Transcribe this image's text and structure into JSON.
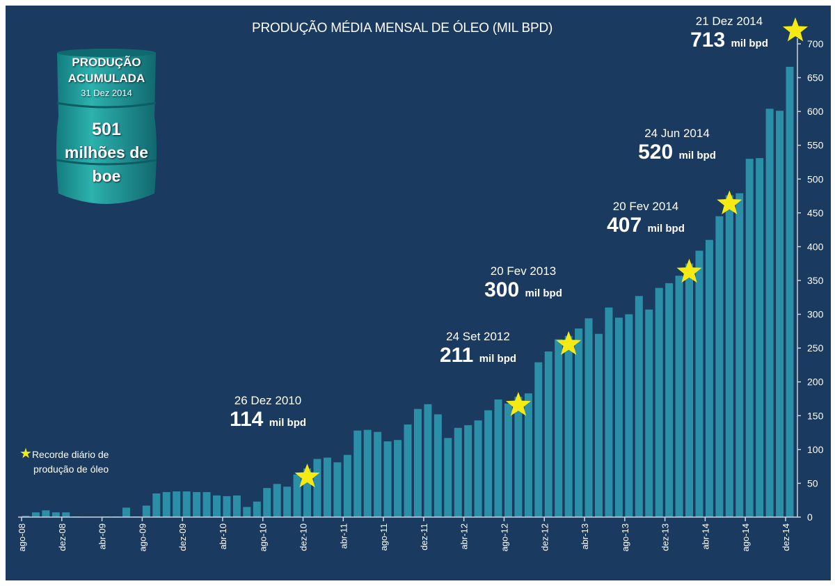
{
  "colors": {
    "background": "#1b3a5f",
    "bar": "#2b8fa8",
    "star": "#f5ea14",
    "barrel": "#1e9a9a",
    "text": "#ffffff"
  },
  "barrel": {
    "line1": "PRODUÇÃO",
    "line2": "ACUMULADA",
    "date": "31 Dez 2014",
    "value": "501",
    "unit1": "milhões de",
    "unit2": "boe"
  },
  "legend": {
    "icon": "star-icon",
    "line1": "Recorde diário de",
    "line2": "produção de óleo"
  },
  "chart_data": {
    "type": "bar",
    "title": "PRODUÇÃO MÉDIA MENSAL DE ÓLEO (MIL BPD)",
    "xlabel": "",
    "ylabel": "",
    "ylim": [
      0,
      700
    ],
    "yticks": [
      "0",
      "50",
      "100",
      "150",
      "200",
      "250",
      "300",
      "350",
      "400",
      "450",
      "500",
      "550",
      "600",
      "650",
      "700"
    ],
    "tick_labels": [
      "ago-08",
      "dez-08",
      "abr-09",
      "ago-09",
      "dez-09",
      "abr-10",
      "ago-10",
      "dez-10",
      "abr-11",
      "ago-11",
      "dez-11",
      "abr-12",
      "ago-12",
      "dez-12",
      "abr-13",
      "ago-13",
      "dez-13",
      "abr-14",
      "ago-14",
      "dez-14"
    ],
    "first_month": "ago-08",
    "last_month": "dez-14",
    "values": [
      2,
      7,
      10,
      7,
      7,
      1,
      0,
      0,
      1,
      1,
      14,
      1,
      17,
      35,
      37,
      38,
      38,
      37,
      37,
      32,
      31,
      32,
      15,
      23,
      43,
      49,
      45,
      63,
      72,
      86,
      88,
      81,
      92,
      128,
      129,
      126,
      112,
      114,
      137,
      160,
      167,
      152,
      117,
      132,
      136,
      143,
      158,
      174,
      168,
      178,
      183,
      229,
      245,
      263,
      268,
      279,
      294,
      271,
      310,
      295,
      300,
      327,
      307,
      339,
      346,
      357,
      375,
      394,
      410,
      445,
      476,
      479,
      530,
      531,
      604,
      601,
      666
    ],
    "grid": false,
    "legend": "left",
    "annotations": [
      {
        "month_index": 28,
        "date": "26 Dez 2010",
        "value": "114",
        "unit": "mil bpd"
      },
      {
        "month_index": 49,
        "date": "24 Set 2012",
        "value": "211",
        "unit": "mil bpd"
      },
      {
        "month_index": 54,
        "date": "20 Fev 2013",
        "value": "300",
        "unit": "mil bpd"
      },
      {
        "month_index": 66,
        "date": "20 Fev 2014",
        "value": "407",
        "unit": "mil bpd"
      },
      {
        "month_index": 70,
        "date": "24 Jun 2014",
        "value": "520",
        "unit": "mil bpd"
      },
      {
        "month_index": 76,
        "date": "21 Dez 2014",
        "value": "713",
        "unit": "mil bpd"
      }
    ]
  }
}
